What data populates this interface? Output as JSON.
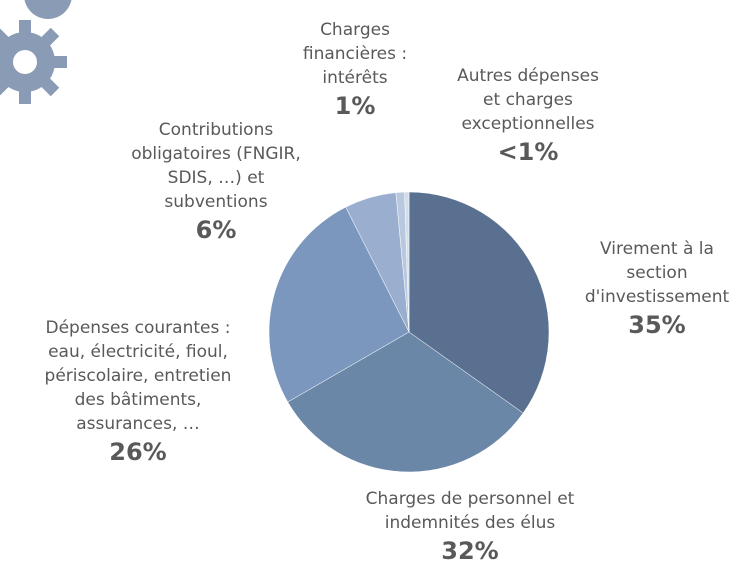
{
  "chart_data": {
    "type": "pie",
    "categories": [
      "Virement à la\nsection\nd'investissement",
      "Charges de personnel et\nindemnités des élus",
      "Dépenses courantes :\neau, électricité, fioul,\npériscolaire, entretien\ndes bâtiments,\nassurances, …",
      "Contributions\nobligatoires (FNGIR,\nSDIS, …) et\nsubventions",
      "Charges\nfinancières :\nintérêts",
      "Autres dépenses\net charges\nexceptionnelles"
    ],
    "values": [
      35,
      32,
      26,
      6,
      1,
      0.5
    ],
    "value_labels": [
      "35%",
      "32%",
      "26%",
      "6%",
      "1%",
      "<1%"
    ],
    "colors": [
      "#5a7090",
      "#6b87a8",
      "#7b97bd",
      "#9aafcf",
      "#b8c8de",
      "#d3dde9"
    ]
  }
}
